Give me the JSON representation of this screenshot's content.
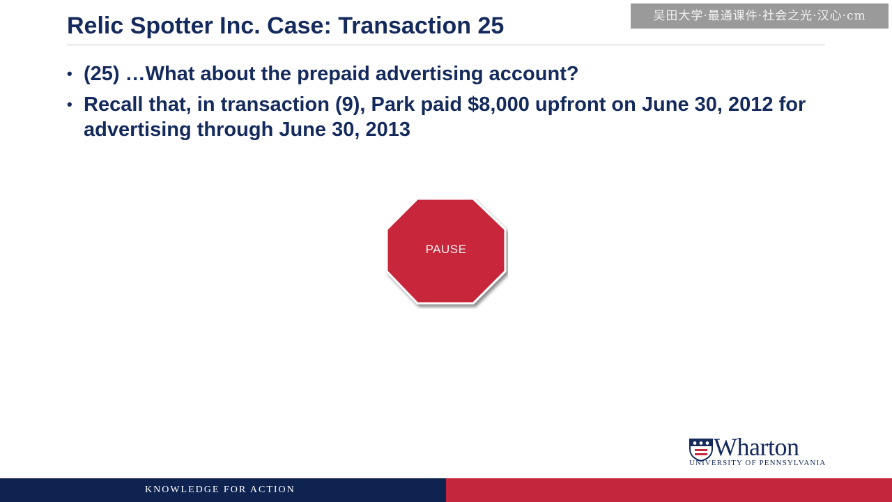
{
  "slide": {
    "title": "Relic Spotter Inc. Case: Transaction 25",
    "watermark": "吴田大学·最通课件·社会之光·汉心·cm",
    "bullets": [
      "(25) …What about the prepaid advertising account?",
      "Recall that, in transaction (9), Park paid $8,000 upfront on June 30, 2012 for advertising through June 30, 2013"
    ],
    "bullet_symbol": "•",
    "stop_sign": {
      "label": "PAUSE",
      "color": "#c7283a",
      "icon": "stop-sign-octagon"
    }
  },
  "logo": {
    "wordmark": "Wharton",
    "subtitle": "University of Pennsylvania",
    "icon": "penn-shield-icon"
  },
  "footer": {
    "tagline": "KNOWLEDGE FOR ACTION",
    "colors": {
      "left": "#0f2350",
      "right": "#c4263d"
    }
  }
}
